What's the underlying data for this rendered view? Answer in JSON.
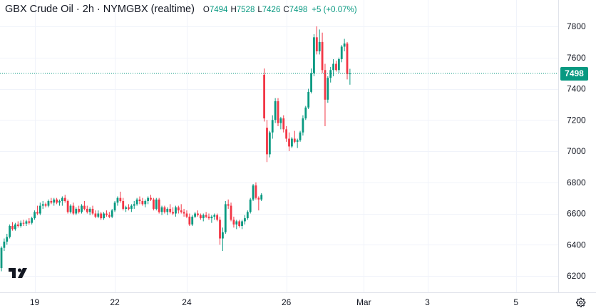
{
  "header": {
    "symbol": "GBX Crude Oil · 2h · NYMGBX (realtime)",
    "o_label": "O",
    "o_value": "7494",
    "h_label": "H",
    "h_value": "7528",
    "l_label": "L",
    "l_value": "7426",
    "c_label": "C",
    "c_value": "7498",
    "change": "+5 (+0.07%)"
  },
  "price_tag": "7498",
  "colors": {
    "up": "#089981",
    "down": "#f23645",
    "grid": "#f0f3fa",
    "axis_border": "#e0e3eb"
  },
  "icons": {
    "logo": "tradingview-logo-icon",
    "settings": "gear-icon"
  },
  "chart_data": {
    "type": "candlestick",
    "y_ticks": [
      6200,
      6400,
      6600,
      6800,
      7000,
      7200,
      7400,
      7600,
      7800
    ],
    "x_ticks": [
      {
        "label": "19",
        "bar": 12
      },
      {
        "label": "22",
        "bar": 41
      },
      {
        "label": "24",
        "bar": 67
      },
      {
        "label": "26",
        "bar": 103
      },
      {
        "label": "Mar",
        "bar": 131
      },
      {
        "label": "3",
        "bar": 154
      },
      {
        "label": "5",
        "bar": 186
      }
    ],
    "ylim": [
      6100,
      7900
    ],
    "last_price": 7498,
    "grid": true,
    "candles": [
      [
        6250,
        6390,
        6230,
        6380
      ],
      [
        6380,
        6440,
        6360,
        6420
      ],
      [
        6420,
        6470,
        6400,
        6450
      ],
      [
        6450,
        6530,
        6440,
        6520
      ],
      [
        6520,
        6545,
        6490,
        6500
      ],
      [
        6500,
        6540,
        6490,
        6530
      ],
      [
        6530,
        6550,
        6510,
        6520
      ],
      [
        6520,
        6555,
        6510,
        6540
      ],
      [
        6540,
        6560,
        6520,
        6535
      ],
      [
        6535,
        6560,
        6520,
        6550
      ],
      [
        6550,
        6570,
        6530,
        6540
      ],
      [
        6540,
        6580,
        6530,
        6570
      ],
      [
        6570,
        6620,
        6560,
        6610
      ],
      [
        6610,
        6650,
        6590,
        6600
      ],
      [
        6600,
        6670,
        6590,
        6650
      ],
      [
        6650,
        6680,
        6630,
        6660
      ],
      [
        6660,
        6670,
        6640,
        6650
      ],
      [
        6650,
        6690,
        6640,
        6680
      ],
      [
        6680,
        6700,
        6660,
        6670
      ],
      [
        6670,
        6700,
        6650,
        6690
      ],
      [
        6690,
        6700,
        6660,
        6670
      ],
      [
        6670,
        6690,
        6650,
        6680
      ],
      [
        6680,
        6710,
        6650,
        6700
      ],
      [
        6700,
        6720,
        6670,
        6680
      ],
      [
        6680,
        6690,
        6600,
        6610
      ],
      [
        6610,
        6660,
        6600,
        6650
      ],
      [
        6650,
        6670,
        6590,
        6600
      ],
      [
        6600,
        6640,
        6590,
        6630
      ],
      [
        6630,
        6650,
        6600,
        6610
      ],
      [
        6610,
        6660,
        6600,
        6650
      ],
      [
        6650,
        6680,
        6620,
        6630
      ],
      [
        6630,
        6650,
        6600,
        6610
      ],
      [
        6610,
        6640,
        6590,
        6630
      ],
      [
        6630,
        6650,
        6590,
        6600
      ],
      [
        6600,
        6620,
        6570,
        6580
      ],
      [
        6580,
        6620,
        6570,
        6600
      ],
      [
        6600,
        6610,
        6560,
        6570
      ],
      [
        6570,
        6610,
        6560,
        6600
      ],
      [
        6600,
        6620,
        6580,
        6590
      ],
      [
        6590,
        6610,
        6570,
        6580
      ],
      [
        6580,
        6630,
        6570,
        6620
      ],
      [
        6620,
        6680,
        6610,
        6670
      ],
      [
        6670,
        6710,
        6650,
        6700
      ],
      [
        6700,
        6740,
        6670,
        6680
      ],
      [
        6680,
        6700,
        6620,
        6630
      ],
      [
        6630,
        6650,
        6610,
        6640
      ],
      [
        6640,
        6660,
        6620,
        6630
      ],
      [
        6630,
        6660,
        6610,
        6650
      ],
      [
        6650,
        6680,
        6630,
        6660
      ],
      [
        6660,
        6700,
        6650,
        6690
      ],
      [
        6690,
        6710,
        6660,
        6680
      ],
      [
        6680,
        6700,
        6650,
        6660
      ],
      [
        6660,
        6690,
        6640,
        6680
      ],
      [
        6680,
        6710,
        6660,
        6700
      ],
      [
        6700,
        6720,
        6680,
        6690
      ],
      [
        6690,
        6700,
        6620,
        6630
      ],
      [
        6630,
        6700,
        6620,
        6690
      ],
      [
        6690,
        6700,
        6600,
        6610
      ],
      [
        6610,
        6650,
        6590,
        6640
      ],
      [
        6640,
        6650,
        6600,
        6610
      ],
      [
        6610,
        6640,
        6590,
        6630
      ],
      [
        6630,
        6660,
        6600,
        6610
      ],
      [
        6610,
        6640,
        6590,
        6600
      ],
      [
        6600,
        6650,
        6580,
        6640
      ],
      [
        6640,
        6650,
        6600,
        6620
      ],
      [
        6620,
        6660,
        6600,
        6610
      ],
      [
        6610,
        6630,
        6580,
        6600
      ],
      [
        6600,
        6620,
        6570,
        6580
      ],
      [
        6580,
        6600,
        6520,
        6530
      ],
      [
        6530,
        6590,
        6520,
        6580
      ],
      [
        6580,
        6610,
        6570,
        6600
      ],
      [
        6600,
        6620,
        6580,
        6590
      ],
      [
        6590,
        6600,
        6560,
        6570
      ],
      [
        6570,
        6600,
        6550,
        6590
      ],
      [
        6590,
        6610,
        6570,
        6580
      ],
      [
        6580,
        6600,
        6560,
        6570
      ],
      [
        6570,
        6590,
        6540,
        6580
      ],
      [
        6580,
        6600,
        6560,
        6590
      ],
      [
        6590,
        6600,
        6550,
        6560
      ],
      [
        6560,
        6580,
        6400,
        6440
      ],
      [
        6440,
        6510,
        6360,
        6480
      ],
      [
        6480,
        6680,
        6470,
        6660
      ],
      [
        6660,
        6690,
        6630,
        6650
      ],
      [
        6650,
        6670,
        6550,
        6560
      ],
      [
        6560,
        6580,
        6510,
        6530
      ],
      [
        6530,
        6560,
        6500,
        6550
      ],
      [
        6550,
        6560,
        6510,
        6520
      ],
      [
        6520,
        6560,
        6500,
        6550
      ],
      [
        6550,
        6590,
        6530,
        6570
      ],
      [
        6570,
        6620,
        6560,
        6610
      ],
      [
        6610,
        6700,
        6600,
        6690
      ],
      [
        6690,
        6790,
        6680,
        6780
      ],
      [
        6780,
        6800,
        6690,
        6700
      ],
      [
        6700,
        6710,
        6620,
        6690
      ],
      [
        6690,
        6730,
        6680,
        6720
      ],
      [
        7490,
        7530,
        7190,
        7210
      ],
      [
        7150,
        7200,
        6930,
        6980
      ],
      [
        6980,
        7130,
        6960,
        7120
      ],
      [
        7120,
        7230,
        7080,
        7200
      ],
      [
        7200,
        7340,
        7180,
        7320
      ],
      [
        7320,
        7340,
        7160,
        7180
      ],
      [
        7180,
        7220,
        7140,
        7210
      ],
      [
        7210,
        7230,
        7120,
        7140
      ],
      [
        7140,
        7160,
        7060,
        7080
      ],
      [
        7080,
        7120,
        7000,
        7030
      ],
      [
        7030,
        7090,
        7020,
        7080
      ],
      [
        7080,
        7130,
        7050,
        7060
      ],
      [
        7060,
        7080,
        7020,
        7070
      ],
      [
        7070,
        7130,
        7060,
        7120
      ],
      [
        7120,
        7230,
        7100,
        7210
      ],
      [
        7210,
        7290,
        7200,
        7280
      ],
      [
        7280,
        7400,
        7270,
        7380
      ],
      [
        7380,
        7530,
        7370,
        7500
      ],
      [
        7500,
        7750,
        7480,
        7730
      ],
      [
        7730,
        7800,
        7620,
        7640
      ],
      [
        7640,
        7780,
        7620,
        7700
      ],
      [
        7700,
        7760,
        7500,
        7520
      ],
      [
        7520,
        7560,
        7160,
        7330
      ],
      [
        7330,
        7480,
        7310,
        7470
      ],
      [
        7470,
        7540,
        7440,
        7520
      ],
      [
        7520,
        7590,
        7480,
        7560
      ],
      [
        7560,
        7580,
        7510,
        7520
      ],
      [
        7520,
        7600,
        7500,
        7590
      ],
      [
        7590,
        7680,
        7570,
        7670
      ],
      [
        7670,
        7720,
        7640,
        7690
      ],
      [
        7690,
        7700,
        7460,
        7494
      ],
      [
        7494,
        7528,
        7426,
        7498
      ]
    ]
  }
}
